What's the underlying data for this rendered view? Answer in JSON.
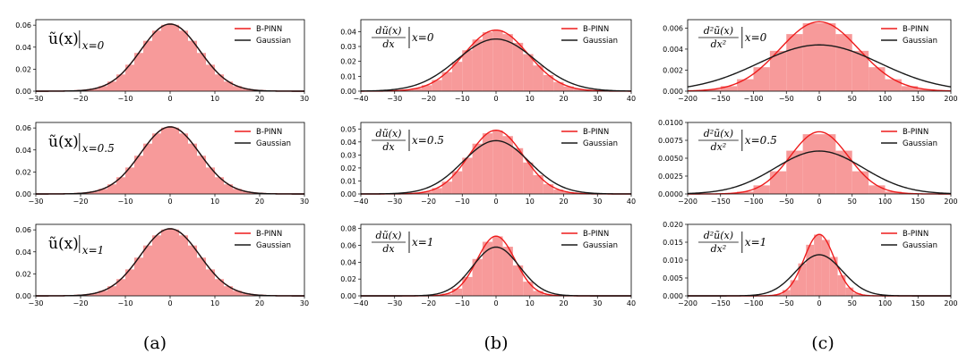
{
  "chart_data": [
    {
      "type": "histogram+line",
      "column": "a",
      "label": "ũ(x)|x=0",
      "xlim": [
        -30,
        30
      ],
      "xticks": [
        -30,
        -20,
        -10,
        0,
        10,
        20,
        30
      ],
      "ylim": [
        0,
        0.065
      ],
      "yticks": [
        "0.00",
        "0.02",
        "0.04",
        "0.06"
      ],
      "bin_width": 2,
      "gaussian": {
        "mean": 0,
        "std": 6.6,
        "peak": 0.061
      },
      "bpinn": {
        "mean": 0,
        "std": 6.6,
        "peak": 0.061
      },
      "legend": [
        "B-PINN",
        "Gaussian"
      ]
    },
    {
      "type": "histogram+line",
      "column": "a",
      "label": "ũ(x)|x=0.5",
      "xlim": [
        -30,
        30
      ],
      "xticks": [
        -30,
        -20,
        -10,
        0,
        10,
        20,
        30
      ],
      "ylim": [
        0,
        0.065
      ],
      "yticks": [
        "0.00",
        "0.02",
        "0.04",
        "0.06"
      ],
      "bin_width": 2,
      "gaussian": {
        "mean": 0,
        "std": 6.6,
        "peak": 0.061
      },
      "bpinn": {
        "mean": 0,
        "std": 6.6,
        "peak": 0.061
      },
      "legend": [
        "B-PINN",
        "Gaussian"
      ]
    },
    {
      "type": "histogram+line",
      "column": "a",
      "label": "ũ(x)|x=1",
      "xlim": [
        -30,
        30
      ],
      "xticks": [
        -30,
        -20,
        -10,
        0,
        10,
        20,
        30
      ],
      "ylim": [
        0,
        0.065
      ],
      "yticks": [
        "0.00",
        "0.02",
        "0.04",
        "0.06"
      ],
      "bin_width": 2,
      "gaussian": {
        "mean": 0,
        "std": 6.6,
        "peak": 0.061
      },
      "bpinn": {
        "mean": 0,
        "std": 6.6,
        "peak": 0.061
      },
      "legend": [
        "B-PINN",
        "Gaussian"
      ]
    },
    {
      "type": "histogram+line",
      "column": "b",
      "label_num": "dũ(x)",
      "label_den": "dx",
      "label_sub": "x=0",
      "xlim": [
        -40,
        40
      ],
      "xticks": [
        -40,
        -30,
        -20,
        -10,
        0,
        10,
        20,
        30,
        40
      ],
      "ylim": [
        0,
        0.048
      ],
      "yticks": [
        "0.00",
        "0.01",
        "0.02",
        "0.03",
        "0.04"
      ],
      "bin_width": 3,
      "gaussian": {
        "mean": 0,
        "std": 11.5,
        "peak": 0.035
      },
      "bpinn": {
        "mean": 0,
        "std": 9.5,
        "peak": 0.041
      },
      "legend": [
        "B-PINN",
        "Gaussian"
      ]
    },
    {
      "type": "histogram+line",
      "column": "b",
      "label_num": "dũ(x)",
      "label_den": "dx",
      "label_sub": "x=0.5",
      "xlim": [
        -40,
        40
      ],
      "xticks": [
        -40,
        -30,
        -20,
        -10,
        0,
        10,
        20,
        30,
        40
      ],
      "ylim": [
        0,
        0.055
      ],
      "yticks": [
        "0.00",
        "0.01",
        "0.02",
        "0.03",
        "0.04",
        "0.05"
      ],
      "bin_width": 3,
      "gaussian": {
        "mean": 0,
        "std": 9.8,
        "peak": 0.041
      },
      "bpinn": {
        "mean": 0,
        "std": 8.0,
        "peak": 0.049
      },
      "legend": [
        "B-PINN",
        "Gaussian"
      ]
    },
    {
      "type": "histogram+line",
      "column": "b",
      "label_num": "dũ(x)",
      "label_den": "dx",
      "label_sub": "x=1",
      "xlim": [
        -40,
        40
      ],
      "xticks": [
        -40,
        -30,
        -20,
        -10,
        0,
        10,
        20,
        30,
        40
      ],
      "ylim": [
        0,
        0.085
      ],
      "yticks": [
        "0.00",
        "0.02",
        "0.04",
        "0.06",
        "0.08"
      ],
      "bin_width": 3,
      "gaussian": {
        "mean": 0,
        "std": 6.9,
        "peak": 0.058
      },
      "bpinn": {
        "mean": 0,
        "std": 5.6,
        "peak": 0.071
      },
      "legend": [
        "B-PINN",
        "Gaussian"
      ]
    },
    {
      "type": "histogram+line",
      "column": "c",
      "label_num": "d²ũ(x)",
      "label_den": "dx²",
      "label_sub": "x=0",
      "xlim": [
        -200,
        200
      ],
      "xticks": [
        -200,
        -150,
        -100,
        -50,
        0,
        50,
        100,
        150,
        200
      ],
      "ylim": [
        0,
        0.0068
      ],
      "yticks": [
        "0.000",
        "0.002",
        "0.004",
        "0.006"
      ],
      "bin_width": 25,
      "gaussian": {
        "mean": 0,
        "std": 92,
        "peak": 0.0044
      },
      "bpinn": {
        "mean": 0,
        "std": 60,
        "peak": 0.0066
      },
      "legend": [
        "B-PINN",
        "Gaussian"
      ]
    },
    {
      "type": "histogram+line",
      "column": "c",
      "label_num": "d²ũ(x)",
      "label_den": "dx²",
      "label_sub": "x=0.5",
      "xlim": [
        -200,
        200
      ],
      "xticks": [
        -200,
        -150,
        -100,
        -50,
        0,
        50,
        100,
        150,
        200
      ],
      "ylim": [
        0,
        0.01
      ],
      "yticks": [
        "0.0000",
        "0.0025",
        "0.0050",
        "0.0075",
        "0.0100"
      ],
      "bin_width": 25,
      "gaussian": {
        "mean": 0,
        "std": 67,
        "peak": 0.006
      },
      "bpinn": {
        "mean": 0,
        "std": 44,
        "peak": 0.0087
      },
      "legend": [
        "B-PINN",
        "Gaussian"
      ]
    },
    {
      "type": "histogram+line",
      "column": "c",
      "label_num": "d²ũ(x)",
      "label_den": "dx²",
      "label_sub": "x=1",
      "xlim": [
        -200,
        200
      ],
      "xticks": [
        -200,
        -150,
        -100,
        -50,
        0,
        50,
        100,
        150,
        200
      ],
      "ylim": [
        0,
        0.02
      ],
      "yticks": [
        "0.000",
        "0.005",
        "0.010",
        "0.015",
        "0.020"
      ],
      "bin_width": 12,
      "gaussian": {
        "mean": 0,
        "std": 35,
        "peak": 0.0115
      },
      "bpinn": {
        "mean": 0,
        "std": 23,
        "peak": 0.0172
      },
      "legend": [
        "B-PINN",
        "Gaussian"
      ]
    }
  ],
  "captions": [
    "(a)",
    "(b)",
    "(c)"
  ],
  "legend": {
    "bpinn": "B-PINN",
    "gaussian": "Gaussian"
  },
  "colors": {
    "bpinn": "#ee1c1c",
    "gaussian": "#1a1a1a",
    "hist": "#f79a9a"
  }
}
